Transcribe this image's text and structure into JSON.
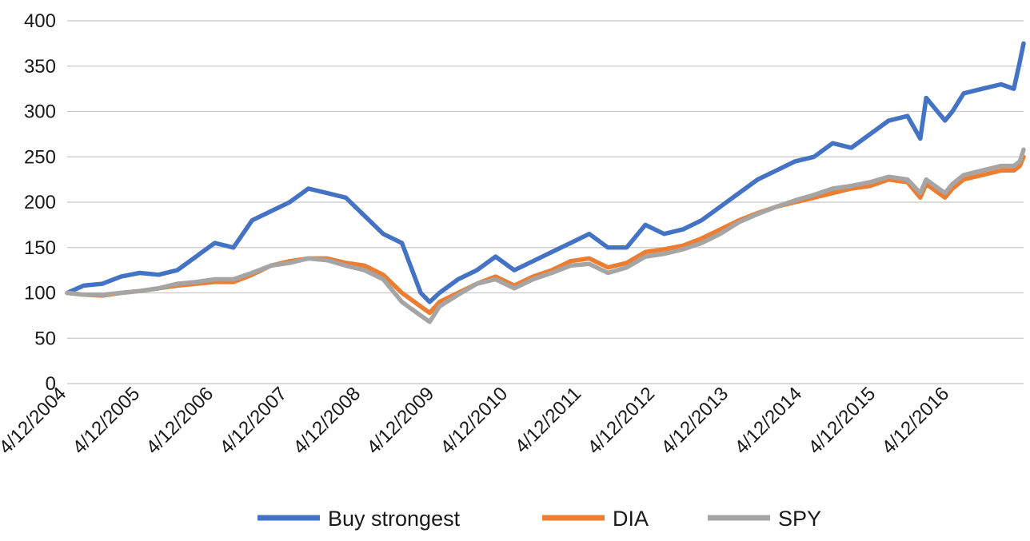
{
  "chart_data": {
    "type": "line",
    "title": "",
    "xlabel": "",
    "ylabel": "",
    "ylim": [
      0,
      400
    ],
    "y_ticks": [
      0,
      50,
      100,
      150,
      200,
      250,
      300,
      350,
      400
    ],
    "x_tick_labels": [
      "4/12/2004",
      "4/12/2005",
      "4/12/2006",
      "4/12/2007",
      "4/12/2008",
      "4/12/2009",
      "4/12/2010",
      "4/12/2011",
      "4/12/2012",
      "4/12/2013",
      "4/12/2014",
      "4/12/2015",
      "4/12/2016"
    ],
    "xlim": [
      2004.28,
      2017.05
    ],
    "grid": "horizontal",
    "legend_position": "bottom",
    "x": [
      2004.28,
      2004.5,
      2004.75,
      2005.0,
      2005.25,
      2005.5,
      2005.75,
      2006.0,
      2006.25,
      2006.5,
      2006.75,
      2007.0,
      2007.25,
      2007.5,
      2007.75,
      2008.0,
      2008.25,
      2008.5,
      2008.75,
      2009.0,
      2009.12,
      2009.25,
      2009.5,
      2009.75,
      2010.0,
      2010.25,
      2010.5,
      2010.75,
      2011.0,
      2011.25,
      2011.5,
      2011.75,
      2012.0,
      2012.25,
      2012.5,
      2012.75,
      2013.0,
      2013.25,
      2013.5,
      2013.75,
      2014.0,
      2014.25,
      2014.5,
      2014.75,
      2015.0,
      2015.25,
      2015.5,
      2015.67,
      2015.75,
      2016.0,
      2016.1,
      2016.25,
      2016.5,
      2016.75,
      2016.92,
      2017.0,
      2017.05
    ],
    "series": [
      {
        "name": "Buy strongest",
        "color": "#4472C4",
        "values": [
          100,
          108,
          110,
          118,
          122,
          120,
          125,
          140,
          155,
          150,
          180,
          190,
          200,
          215,
          210,
          205,
          185,
          165,
          155,
          100,
          90,
          100,
          115,
          125,
          140,
          125,
          135,
          145,
          155,
          165,
          150,
          150,
          175,
          165,
          170,
          180,
          195,
          210,
          225,
          235,
          245,
          250,
          265,
          260,
          275,
          290,
          295,
          270,
          315,
          290,
          300,
          320,
          325,
          330,
          325,
          355,
          375
        ]
      },
      {
        "name": "DIA",
        "color": "#ED7D31",
        "values": [
          100,
          98,
          97,
          100,
          102,
          105,
          108,
          110,
          112,
          112,
          120,
          130,
          135,
          138,
          138,
          133,
          130,
          120,
          100,
          85,
          78,
          90,
          100,
          110,
          118,
          108,
          118,
          125,
          135,
          138,
          128,
          133,
          145,
          148,
          152,
          160,
          170,
          180,
          188,
          195,
          200,
          205,
          210,
          215,
          218,
          225,
          222,
          205,
          220,
          205,
          215,
          225,
          230,
          235,
          235,
          240,
          250
        ]
      },
      {
        "name": "SPY",
        "color": "#A5A5A5",
        "values": [
          100,
          98,
          98,
          100,
          102,
          105,
          110,
          112,
          115,
          115,
          122,
          130,
          133,
          138,
          136,
          130,
          125,
          115,
          90,
          75,
          68,
          85,
          98,
          110,
          115,
          105,
          115,
          122,
          130,
          132,
          122,
          128,
          140,
          143,
          148,
          155,
          165,
          178,
          187,
          195,
          202,
          208,
          215,
          218,
          222,
          228,
          225,
          210,
          225,
          210,
          220,
          230,
          235,
          240,
          240,
          245,
          258
        ]
      }
    ]
  }
}
